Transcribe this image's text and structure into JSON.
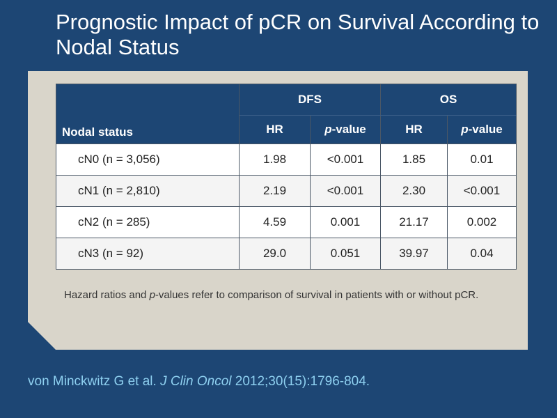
{
  "slide": {
    "title": "Prognostic Impact of pCR on Survival According to Nodal Status"
  },
  "table": {
    "row_header": "Nodal status",
    "groups": [
      "DFS",
      "OS"
    ],
    "sub_headers": {
      "hr": "HR",
      "p_italic": "p",
      "p_rest": "-value"
    },
    "rows": [
      {
        "label": "cN0 (n = 3,056)",
        "dfs_hr": "1.98",
        "dfs_p": "<0.001",
        "os_hr": "1.85",
        "os_p": "0.01"
      },
      {
        "label": "cN1 (n = 2,810)",
        "dfs_hr": "2.19",
        "dfs_p": "<0.001",
        "os_hr": "2.30",
        "os_p": "<0.001"
      },
      {
        "label": "cN2 (n = 285)",
        "dfs_hr": "4.59",
        "dfs_p": "0.001",
        "os_hr": "21.17",
        "os_p": "0.002"
      },
      {
        "label": "cN3 (n = 92)",
        "dfs_hr": "29.0",
        "dfs_p": "0.051",
        "os_hr": "39.97",
        "os_p": "0.04"
      }
    ]
  },
  "note": {
    "part1": "Hazard ratios and ",
    "italic": "p",
    "part2": "-values refer to comparison of survival in patients with or without pCR."
  },
  "citation": {
    "authors": "von Minckwitz G et al. ",
    "journal": "J Clin Oncol",
    "details": " 2012;30(15):1796-804."
  },
  "colors": {
    "background": "#1d4674",
    "panel": "#d9d5ca",
    "header": "#1d4674",
    "citation": "#8ed0f0"
  }
}
